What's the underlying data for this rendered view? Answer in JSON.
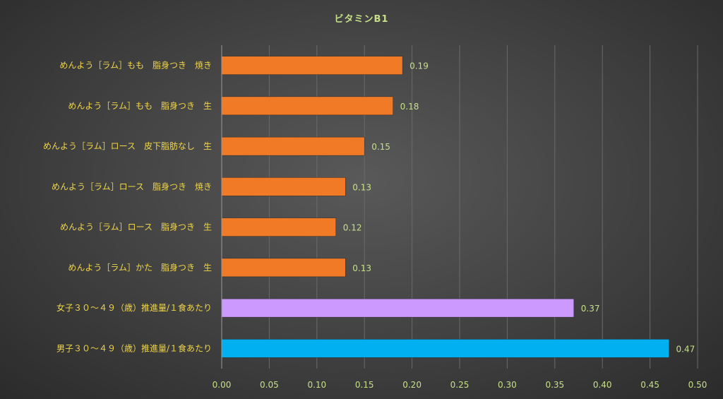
{
  "chart_data": {
    "type": "bar",
    "orientation": "horizontal",
    "title": "ビタミンB1",
    "categories": [
      "めんよう［ラム］もも　脂身つき　焼き",
      "めんよう［ラム］もも　脂身つき　生",
      "めんよう［ラム］ロース　皮下脂肪なし　生",
      "めんよう［ラム］ロース　脂身つき　焼き",
      "めんよう［ラム］ロース　脂身つき　生",
      "めんよう［ラム］かた　脂身つき　生",
      "女子３０～４９（歳）推進量/１食あたり",
      "男子３０～４９（歳）推進量/１食あたり"
    ],
    "values": [
      0.19,
      0.18,
      0.15,
      0.13,
      0.12,
      0.13,
      0.37,
      0.47
    ],
    "data_labels": [
      "0.19",
      "0.18",
      "0.15",
      "0.13",
      "0.12",
      "0.13",
      "0.37",
      "0.47"
    ],
    "bar_colors": [
      "#f07a26",
      "#f07a26",
      "#f07a26",
      "#f07a26",
      "#f07a26",
      "#f07a26",
      "#cc99ff",
      "#00b0f0"
    ],
    "xlim": [
      0,
      0.5
    ],
    "x_ticks": [
      "0.00",
      "0.05",
      "0.10",
      "0.15",
      "0.20",
      "0.25",
      "0.30",
      "0.35",
      "0.40",
      "0.45",
      "0.50"
    ],
    "grid": true,
    "legend": "none",
    "xlabel": "",
    "ylabel": ""
  }
}
